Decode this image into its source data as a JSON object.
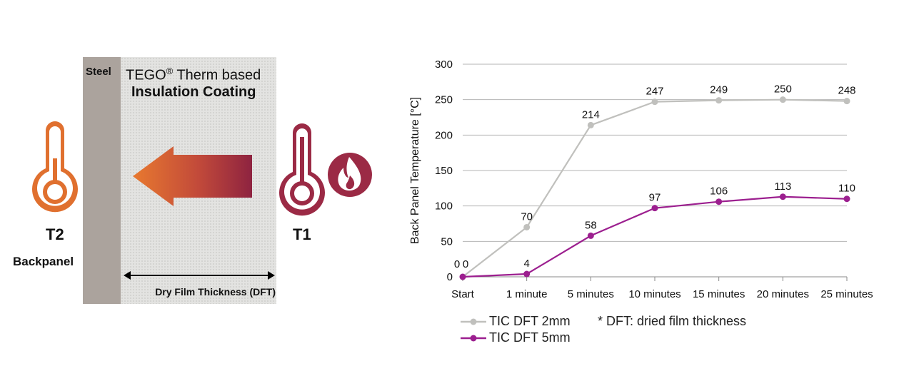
{
  "diagram": {
    "steel_label": "Steel",
    "coating_line1_prefix": "TEGO",
    "coating_line1_sup": "®",
    "coating_line1_suffix": " Therm based",
    "coating_line2": "Insulation Coating",
    "dft_label": "Dry Film Thickness (DFT)",
    "t2_label": "T2",
    "backpanel_label": "Backpanel",
    "t1_label": "T1",
    "icons": [
      "thermometer-icon",
      "thermometer-icon",
      "flame-icon",
      "heat-arrow-icon",
      "double-arrow-icon"
    ],
    "colors": {
      "steel": "#aba39d",
      "coating": "#e3e3e1",
      "orange": "#e0702f",
      "crimson": "#9b2a45"
    }
  },
  "chart_data": {
    "type": "line",
    "title": "",
    "ylabel": "Back Panel Temperature [°C]",
    "xlabel": "",
    "categories": [
      "Start",
      "1 minute",
      "5 minutes",
      "10 minutes",
      "15 minutes",
      "20 minutes",
      "25 minutes"
    ],
    "ylim": [
      0,
      300
    ],
    "yticks": [
      0,
      50,
      100,
      150,
      200,
      250,
      300
    ],
    "grid": true,
    "series": [
      {
        "name": "TIC DFT 2mm",
        "values": [
          0,
          70,
          214,
          247,
          249,
          250,
          248
        ],
        "color": "#c0c0bd"
      },
      {
        "name": "TIC DFT 5mm",
        "values": [
          0,
          4,
          58,
          97,
          106,
          113,
          110
        ],
        "color": "#9c1f8f"
      }
    ],
    "note": "* DFT: dried film thickness",
    "legend_position": "bottom-left"
  }
}
